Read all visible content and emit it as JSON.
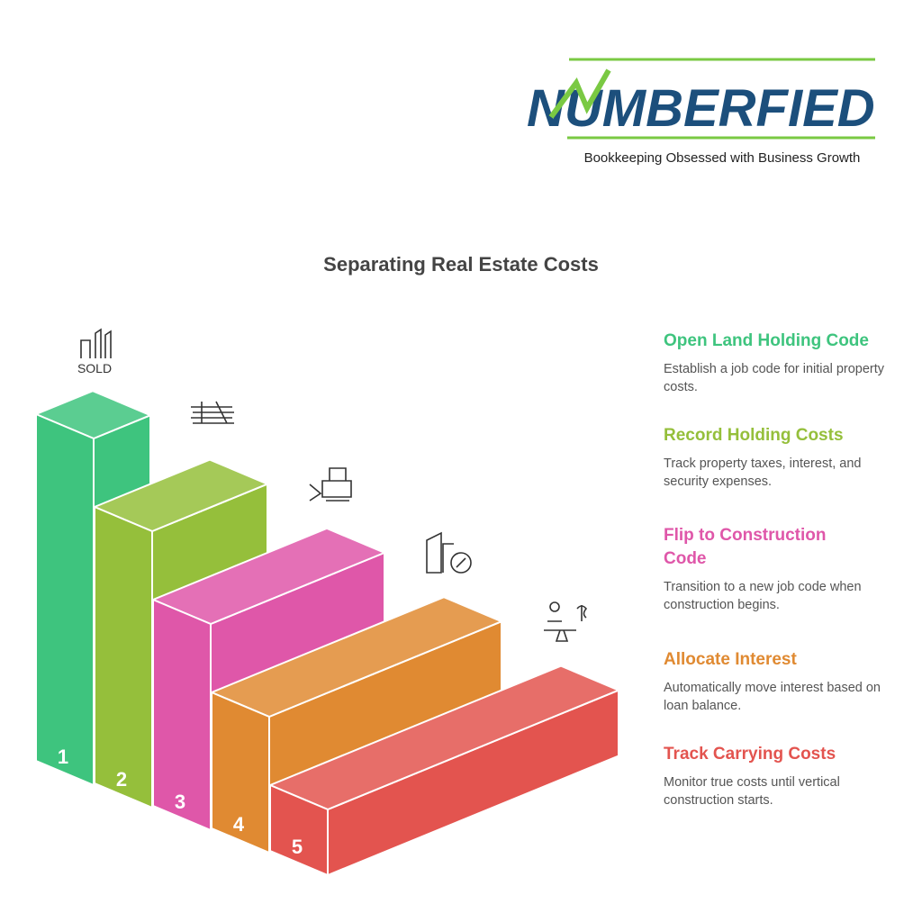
{
  "logo": {
    "name": "NUMBERFIED",
    "tagline": "Bookkeeping Obsessed with Business Growth"
  },
  "title": "Separating Real Estate Costs",
  "sold_sign": "SOLD",
  "steps": [
    {
      "number": 1,
      "title": "Open Land Holding Code",
      "description": "Establish a job code for initial property costs.",
      "color": "#3ec47e"
    },
    {
      "number": 2,
      "title": "Record Holding Costs",
      "description": "Track property taxes, interest, and security expenses.",
      "color": "#95bf3b"
    },
    {
      "number": 3,
      "title": "Flip to Construction Code",
      "description": "Transition to a new job code when construction begins.",
      "color": "#df57a9"
    },
    {
      "number": 4,
      "title": "Allocate Interest",
      "description": "Automatically move interest based on loan balance.",
      "color": "#e08a32"
    },
    {
      "number": 5,
      "title": "Track Carrying Costs",
      "description": "Monitor true costs until vertical construction starts.",
      "color": "#e3544f"
    }
  ]
}
